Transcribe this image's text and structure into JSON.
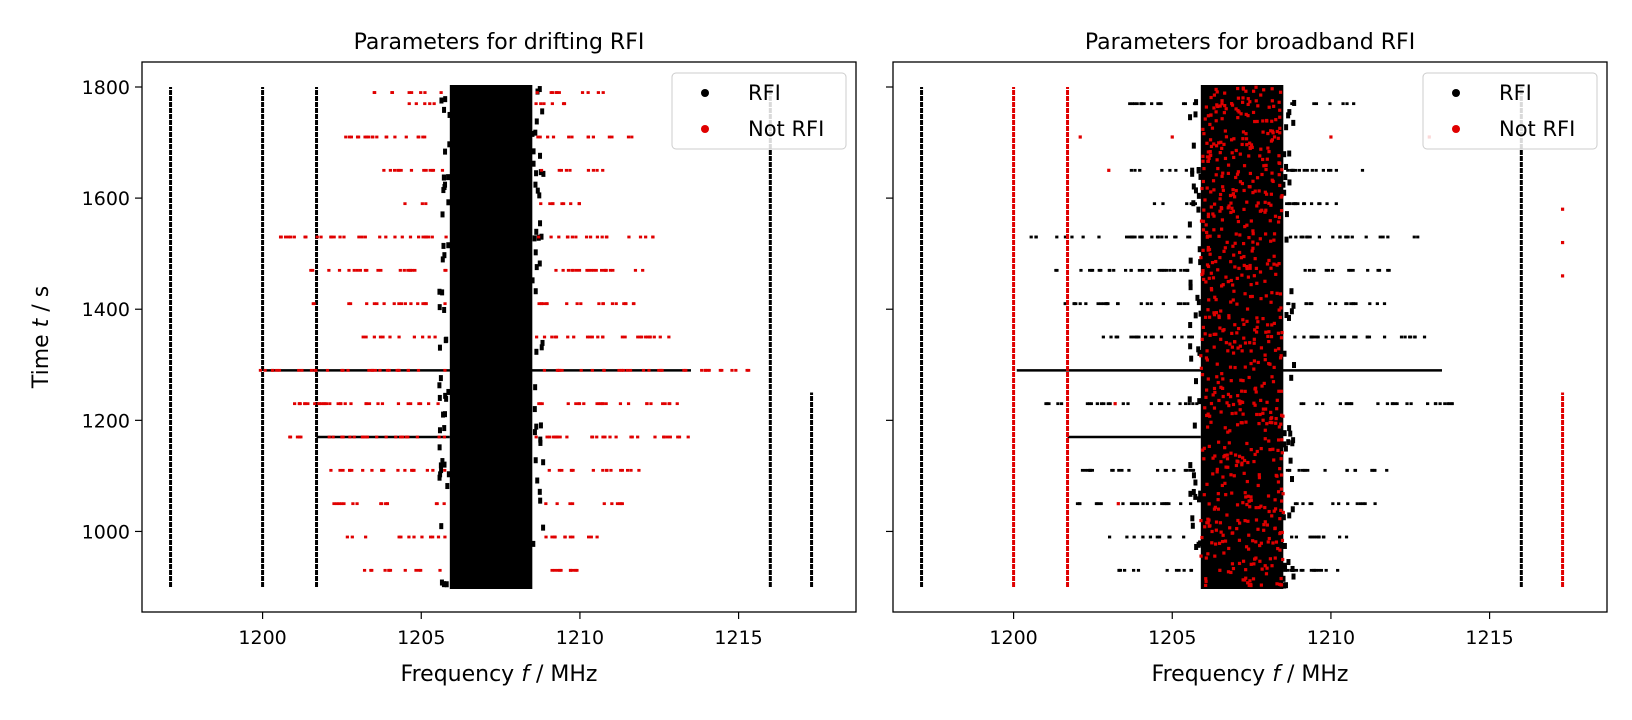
{
  "figure": {
    "colors": {
      "rfi": "#000000",
      "not_rfi": "#e00000",
      "axes": "#000000",
      "background": "#ffffff"
    }
  },
  "chart_data": [
    {
      "type": "scatter",
      "title": "Parameters for drifting RFI",
      "xlabel": "Frequency f / MHz",
      "xlabel_prefix": "Frequency ",
      "xlabel_var": "f",
      "xlabel_suffix": " / MHz",
      "ylabel": "Time t / s",
      "ylabel_prefix": "Time ",
      "ylabel_var": "t",
      "ylabel_suffix": " / s",
      "xlim": [
        1196.2,
        1218.7
      ],
      "ylim": [
        855,
        1845
      ],
      "xticks": [
        1200,
        1205,
        1210,
        1215
      ],
      "yticks": [
        1000,
        1200,
        1400,
        1600,
        1800
      ],
      "show_ytick_labels": true,
      "grid": false,
      "legend": {
        "position": "top-right",
        "entries": [
          "RFI",
          "Not RFI"
        ]
      },
      "series": [
        {
          "name": "RFI",
          "color": "#000000",
          "vertical_lines": [
            {
              "f": 1197.1,
              "t": [
                900,
                1800
              ]
            },
            {
              "f": 1200.0,
              "t": [
                900,
                1800
              ]
            },
            {
              "f": 1201.7,
              "t": [
                900,
                1800
              ]
            },
            {
              "f": 1216.0,
              "t": [
                900,
                1800
              ]
            },
            {
              "f": 1217.3,
              "t": [
                900,
                1250
              ]
            }
          ],
          "blocks": [
            {
              "f": [
                1205.9,
                1208.5
              ],
              "t": [
                900,
                1800
              ]
            }
          ],
          "horizontal_lines": [
            {
              "t": 1290,
              "f": [
                1200.1,
                1213.5
              ]
            },
            {
              "t": 1170,
              "f": [
                1201.7,
                1205.9
              ]
            }
          ]
        },
        {
          "name": "Not RFI",
          "color": "#e00000",
          "rows": [
            {
              "t": 1790,
              "f": [
                1203.2,
                1210.8
              ]
            },
            {
              "t": 1770,
              "f": [
                1204.6,
                1209.6
              ]
            },
            {
              "t": 1710,
              "f": [
                1202.5,
                1211.7
              ]
            },
            {
              "t": 1650,
              "f": [
                1203.7,
                1211.0
              ]
            },
            {
              "t": 1590,
              "f": [
                1204.3,
                1210.2
              ]
            },
            {
              "t": 1530,
              "f": [
                1200.5,
                1212.8
              ]
            },
            {
              "t": 1470,
              "f": [
                1201.3,
                1212.0
              ]
            },
            {
              "t": 1410,
              "f": [
                1201.5,
                1211.8
              ]
            },
            {
              "t": 1350,
              "f": [
                1202.6,
                1213.0
              ]
            },
            {
              "t": 1290,
              "f": [
                1199.9,
                1215.8
              ]
            },
            {
              "t": 1230,
              "f": [
                1201.0,
                1214.2
              ]
            },
            {
              "t": 1170,
              "f": [
                1200.6,
                1213.7
              ]
            },
            {
              "t": 1110,
              "f": [
                1202.0,
                1211.9
              ]
            },
            {
              "t": 1050,
              "f": [
                1201.9,
                1211.6
              ]
            },
            {
              "t": 990,
              "f": [
                1202.6,
                1211.0
              ]
            },
            {
              "t": 930,
              "f": [
                1203.2,
                1210.4
              ]
            }
          ]
        }
      ]
    },
    {
      "type": "scatter",
      "title": "Parameters for broadband RFI",
      "xlabel": "Frequency f / MHz",
      "xlabel_prefix": "Frequency ",
      "xlabel_var": "f",
      "xlabel_suffix": " / MHz",
      "ylabel": "",
      "xlim": [
        1196.2,
        1218.7
      ],
      "ylim": [
        855,
        1845
      ],
      "xticks": [
        1200,
        1205,
        1210,
        1215
      ],
      "yticks": [
        1000,
        1200,
        1400,
        1600,
        1800
      ],
      "show_ytick_labels": false,
      "grid": false,
      "legend": {
        "position": "top-right",
        "entries": [
          "RFI",
          "Not RFI"
        ]
      },
      "series": [
        {
          "name": "RFI",
          "color": "#000000",
          "vertical_lines": [
            {
              "f": 1197.1,
              "t": [
                900,
                1800
              ]
            },
            {
              "f": 1216.0,
              "t": [
                900,
                1800
              ]
            }
          ],
          "blocks": [
            {
              "f": [
                1205.9,
                1208.5
              ],
              "t": [
                900,
                1800
              ]
            }
          ],
          "horizontal_lines": [
            {
              "t": 1290,
              "f": [
                1200.1,
                1213.5
              ]
            },
            {
              "t": 1170,
              "f": [
                1201.7,
                1205.9
              ]
            }
          ],
          "rows": [
            {
              "t": 1770,
              "f": [
                1203.2,
                1210.8
              ]
            },
            {
              "t": 1650,
              "f": [
                1203.7,
                1211.0
              ]
            },
            {
              "t": 1590,
              "f": [
                1204.3,
                1210.2
              ]
            },
            {
              "t": 1530,
              "f": [
                1200.5,
                1212.8
              ]
            },
            {
              "t": 1470,
              "f": [
                1201.3,
                1212.0
              ]
            },
            {
              "t": 1410,
              "f": [
                1201.5,
                1211.8
              ]
            },
            {
              "t": 1350,
              "f": [
                1202.6,
                1213.0
              ]
            },
            {
              "t": 1230,
              "f": [
                1201.0,
                1214.2
              ]
            },
            {
              "t": 1110,
              "f": [
                1202.0,
                1211.9
              ]
            },
            {
              "t": 1050,
              "f": [
                1201.9,
                1211.6
              ]
            },
            {
              "t": 990,
              "f": [
                1202.6,
                1211.0
              ]
            },
            {
              "t": 930,
              "f": [
                1203.2,
                1210.4
              ]
            }
          ]
        },
        {
          "name": "Not RFI",
          "color": "#e00000",
          "vertical_lines": [
            {
              "f": 1200.0,
              "t": [
                900,
                1800
              ]
            },
            {
              "f": 1201.7,
              "t": [
                900,
                1800
              ]
            },
            {
              "f": 1217.3,
              "t": [
                900,
                1250
              ]
            }
          ],
          "scatter_in_block": {
            "f": [
              1205.9,
              1208.5
            ],
            "t": [
              900,
              1800
            ]
          },
          "isolated": [
            [
              1202.1,
              1710
            ],
            [
              1203.0,
              1650
            ],
            [
              1205.0,
              1710
            ],
            [
              1210.0,
              1710
            ],
            [
              1213.1,
              1710
            ],
            [
              1203.2,
              1230
            ],
            [
              1206.5,
              930
            ],
            [
              1203.3,
              1050
            ],
            [
              1217.3,
              1580
            ],
            [
              1217.3,
              1520
            ],
            [
              1217.3,
              1460
            ]
          ]
        }
      ]
    }
  ]
}
